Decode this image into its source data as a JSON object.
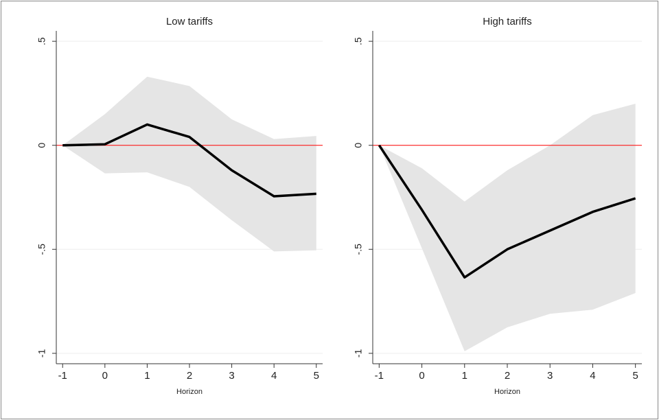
{
  "chart_data": [
    {
      "type": "band-line",
      "title": "Low tariffs",
      "x_label": "Horizon",
      "x": [
        -1,
        0,
        1,
        2,
        3,
        4,
        5
      ],
      "values": [
        0,
        0.005,
        0.1,
        0.04,
        -0.12,
        -0.245,
        -0.233
      ],
      "upper": [
        0,
        0.15,
        0.33,
        0.285,
        0.125,
        0.03,
        0.045
      ],
      "lower": [
        0,
        -0.135,
        -0.13,
        -0.2,
        -0.36,
        -0.51,
        -0.505
      ],
      "color": "#000000",
      "band_color": "#e5e5e5",
      "xlim": [
        -1.15,
        5.15
      ],
      "xticks": [
        -1,
        0,
        1,
        2,
        3,
        4,
        5
      ],
      "ylim": [
        -1.05,
        0.55
      ],
      "yticks": [
        -1,
        {
          "value": -0.5,
          "label": "-.5"
        },
        0,
        {
          "value": 0.5,
          "label": ".5"
        }
      ],
      "hline": 0,
      "hline_color": "#ff0000",
      "grid": true
    },
    {
      "type": "band-line",
      "title": "High tariffs",
      "x_label": "Horizon",
      "x": [
        -1,
        0,
        1,
        2,
        3,
        4,
        5
      ],
      "values": [
        0,
        -0.31,
        -0.635,
        -0.5,
        -0.41,
        -0.32,
        -0.255
      ],
      "upper": [
        0,
        -0.11,
        -0.27,
        -0.12,
        0,
        0.145,
        0.2
      ],
      "lower": [
        0,
        -0.495,
        -0.99,
        -0.875,
        -0.81,
        -0.79,
        -0.71
      ],
      "color": "#000000",
      "band_color": "#e5e5e5",
      "xlim": [
        -1.15,
        5.15
      ],
      "xticks": [
        -1,
        0,
        1,
        2,
        3,
        4,
        5
      ],
      "ylim": [
        -1.05,
        0.55
      ],
      "yticks": [
        -1,
        {
          "value": -0.5,
          "label": "-.5"
        },
        0,
        {
          "value": 0.5,
          "label": ".5"
        }
      ],
      "hline": 0,
      "hline_color": "#ff0000",
      "grid": true
    }
  ]
}
